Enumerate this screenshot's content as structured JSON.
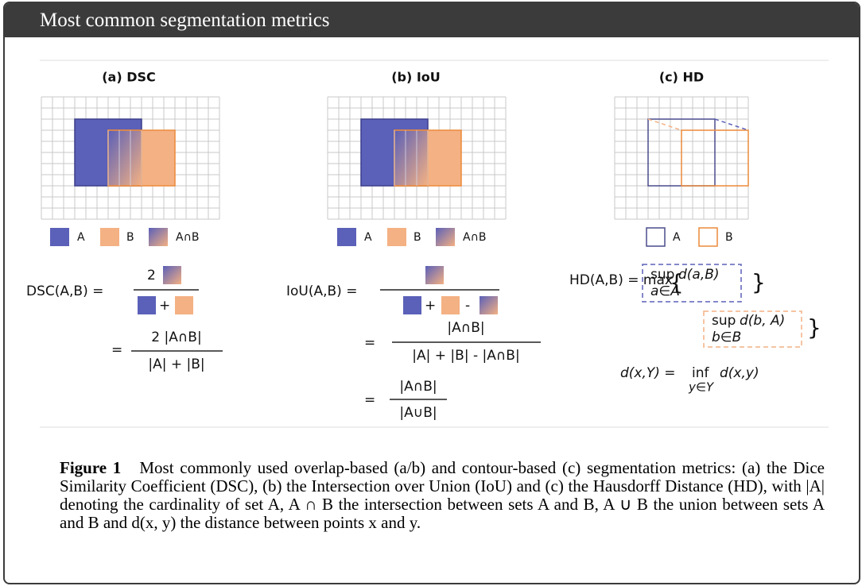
{
  "header": {
    "title": "Most common segmentation metrics"
  },
  "panels": [
    {
      "title": "(a) DSC",
      "legend": [
        "A",
        "B",
        "A∩B"
      ],
      "formula": {
        "lhs": "DSC(A,B) =",
        "num": "2",
        "plus": "+",
        "eq": "=",
        "num2": "2 |A∩B|",
        "den2": "|A| + |B|"
      }
    },
    {
      "title": "(b) IoU",
      "legend": [
        "A",
        "B",
        "A∩B"
      ],
      "formula": {
        "lhs": "IoU(A,B) =",
        "plus": "+",
        "minus": "-",
        "eq": "=",
        "num2": "|A∩B|",
        "den2": "|A| + |B| - |A∩B|",
        "eq2": "=",
        "num3": "|A∩B|",
        "den3": "|A∪B|"
      }
    },
    {
      "title": "(c) HD",
      "legend": [
        "A",
        "B"
      ],
      "formula": {
        "lhs": "HD(A,B) = max",
        "open": "{",
        "sup1": "sup",
        "d1": "d(a,B)",
        "sub1": "a∈A",
        "close1": "}",
        "sup2": "sup",
        "d2": "d(b, A)",
        "sub2": "b∈B",
        "close2": "}",
        "dist": "d(x,Y) = ",
        "inf": "inf",
        "d3": "d(x,y)",
        "sub3": "y∈Y"
      }
    }
  ],
  "caption": {
    "label": "Figure 1",
    "text": "Most commonly used overlap-based (a/b) and contour-based (c) segmentation metrics: (a) the Dice Similarity Coefficient (DSC), (b) the Intersection over Union (IoU) and (c) the Hausdorff Distance (HD), with |A| denoting the cardinality of set A, A ∩ B the intersection between sets A and B, A ∪ B the union between sets A and B and d(x, y) the distance between points x and y."
  }
}
